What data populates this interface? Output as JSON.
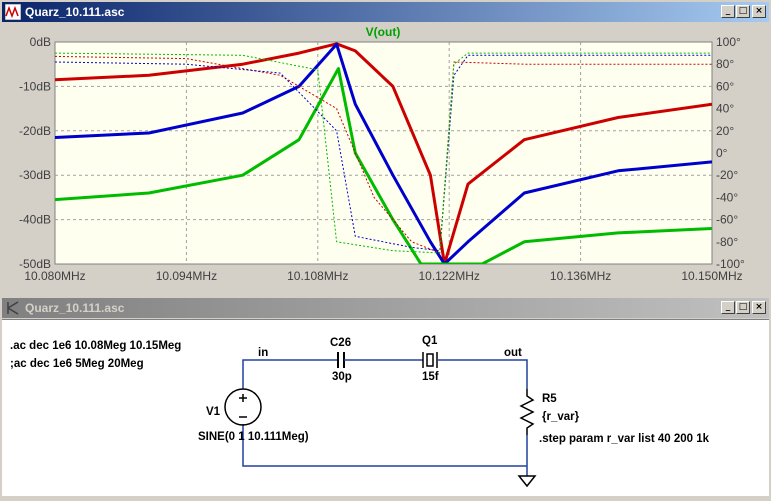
{
  "plot_window": {
    "title": "Quarz_10.111.asc",
    "buttons": {
      "minimize": "_",
      "maximize": "□",
      "close": "×"
    }
  },
  "schematic_window": {
    "title": "Quarz_10.111.asc",
    "buttons": {
      "minimize": "_",
      "maximize": "□",
      "close": "×"
    }
  },
  "plot": {
    "trace_label": "V(out)",
    "trace_label_color": "#00a000",
    "bg_color": "#fffff0",
    "left_axis_ticks": [
      "0dB",
      "-10dB",
      "-20dB",
      "-30dB",
      "-40dB",
      "-50dB"
    ],
    "right_axis_ticks": [
      "100°",
      "80°",
      "60°",
      "40°",
      "20°",
      "0°",
      "-20°",
      "-40°",
      "-60°",
      "-80°",
      "-100°"
    ],
    "x_axis_ticks": [
      "10.080MHz",
      "10.094MHz",
      "10.108MHz",
      "10.122MHz",
      "10.136MHz",
      "10.150MHz"
    ]
  },
  "chart_data": {
    "type": "line",
    "title": "V(out)",
    "x_unit": "MHz",
    "xlim": [
      10.08,
      10.15
    ],
    "ylim_left_dB": [
      -50,
      0
    ],
    "ylim_right_deg": [
      -100,
      100
    ],
    "grid": true,
    "series": [
      {
        "color": "#cc0000",
        "kind": "magnitude",
        "points": [
          [
            10.08,
            -8.5
          ],
          [
            10.09,
            -7.5
          ],
          [
            10.1,
            -5
          ],
          [
            10.106,
            -2.5
          ],
          [
            10.11,
            -0.4
          ],
          [
            10.112,
            -2
          ],
          [
            10.116,
            -10
          ],
          [
            10.12,
            -30
          ],
          [
            10.1215,
            -50
          ],
          [
            10.124,
            -32
          ],
          [
            10.13,
            -22
          ],
          [
            10.14,
            -17
          ],
          [
            10.15,
            -14
          ]
        ]
      },
      {
        "color": "#0000cc",
        "kind": "magnitude",
        "points": [
          [
            10.08,
            -21.5
          ],
          [
            10.09,
            -20.5
          ],
          [
            10.1,
            -16
          ],
          [
            10.106,
            -10
          ],
          [
            10.11,
            -0.5
          ],
          [
            10.112,
            -14
          ],
          [
            10.116,
            -30
          ],
          [
            10.12,
            -45
          ],
          [
            10.1215,
            -50
          ],
          [
            10.124,
            -45
          ],
          [
            10.13,
            -34
          ],
          [
            10.14,
            -29
          ],
          [
            10.15,
            -27
          ]
        ]
      },
      {
        "color": "#00bb00",
        "kind": "magnitude",
        "points": [
          [
            10.08,
            -35.5
          ],
          [
            10.09,
            -34
          ],
          [
            10.1,
            -30
          ],
          [
            10.106,
            -22
          ],
          [
            10.1102,
            -6
          ],
          [
            10.112,
            -25
          ],
          [
            10.116,
            -40
          ],
          [
            10.119,
            -50
          ],
          [
            10.1255,
            -50
          ],
          [
            10.13,
            -45
          ],
          [
            10.14,
            -43
          ],
          [
            10.15,
            -42
          ]
        ]
      },
      {
        "color": "#cc0000",
        "kind": "phase",
        "points": [
          [
            10.08,
            87
          ],
          [
            10.094,
            85
          ],
          [
            10.104,
            70
          ],
          [
            10.11,
            40
          ],
          [
            10.114,
            -40
          ],
          [
            10.118,
            -80
          ],
          [
            10.121,
            -90
          ],
          [
            10.1225,
            82
          ],
          [
            10.13,
            80
          ],
          [
            10.15,
            80
          ]
        ]
      },
      {
        "color": "#0000cc",
        "kind": "phase",
        "points": [
          [
            10.08,
            82
          ],
          [
            10.094,
            80
          ],
          [
            10.104,
            72
          ],
          [
            10.11,
            20
          ],
          [
            10.112,
            -75
          ],
          [
            10.118,
            -85
          ],
          [
            10.121,
            -88
          ],
          [
            10.1225,
            70
          ],
          [
            10.124,
            88
          ],
          [
            10.15,
            88
          ]
        ]
      },
      {
        "color": "#00bb00",
        "kind": "phase",
        "points": [
          [
            10.08,
            90
          ],
          [
            10.1,
            88
          ],
          [
            10.108,
            75
          ],
          [
            10.11,
            -80
          ],
          [
            10.116,
            -88
          ],
          [
            10.121,
            -90
          ],
          [
            10.1225,
            80
          ],
          [
            10.124,
            90
          ],
          [
            10.15,
            90
          ]
        ]
      }
    ]
  },
  "schematic": {
    "directives": [
      ".ac dec 1e6 10.08Meg 10.15Meg",
      ";ac dec 1e6 5Meg 20Meg"
    ],
    "nets": {
      "in": "in",
      "out": "out"
    },
    "c26": {
      "name": "C26",
      "value": "30p"
    },
    "q1": {
      "name": "Q1",
      "value": "15f"
    },
    "r5": {
      "name": "R5",
      "value": "{r_var}"
    },
    "v1": {
      "name": "V1",
      "value": "SINE(0 1 10.111Meg)"
    },
    "step": ".step param r_var list 40 200 1k"
  }
}
